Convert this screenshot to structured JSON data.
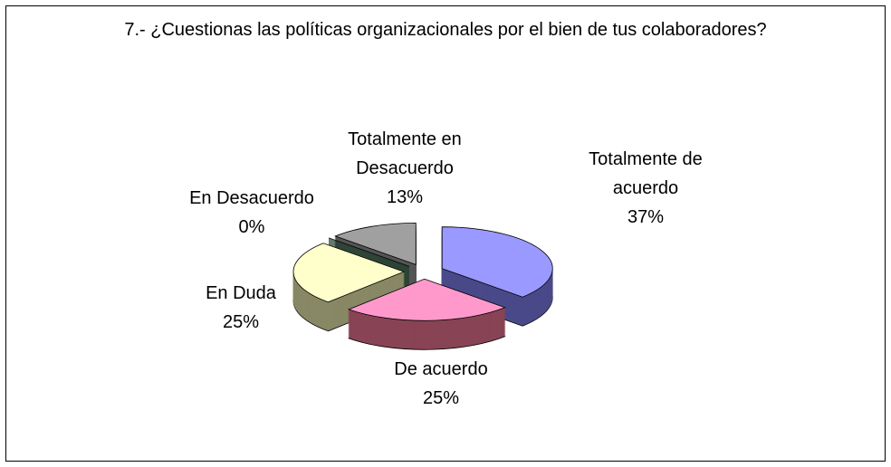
{
  "chart_data": {
    "type": "pie",
    "title": "7.- ¿Cuestionas las políticas organizacionales por el bien de tus colaboradores?",
    "categories": [
      "Totalmente de acuerdo",
      "De acuerdo",
      "En Duda",
      "En Desacuerdo",
      "Totalmente en Desacuerdo"
    ],
    "values": [
      37,
      25,
      25,
      0,
      13
    ],
    "value_labels": [
      "37%",
      "25%",
      "25%",
      "0%",
      "13%"
    ],
    "colors": [
      "#9999ff",
      "#ff99cc",
      "#ffffcc",
      "#2e6b45",
      "#a0a0a0"
    ],
    "side_colors": [
      "#4a4a8a",
      "#884455",
      "#888866",
      "#1a3d27",
      "#555555"
    ]
  }
}
